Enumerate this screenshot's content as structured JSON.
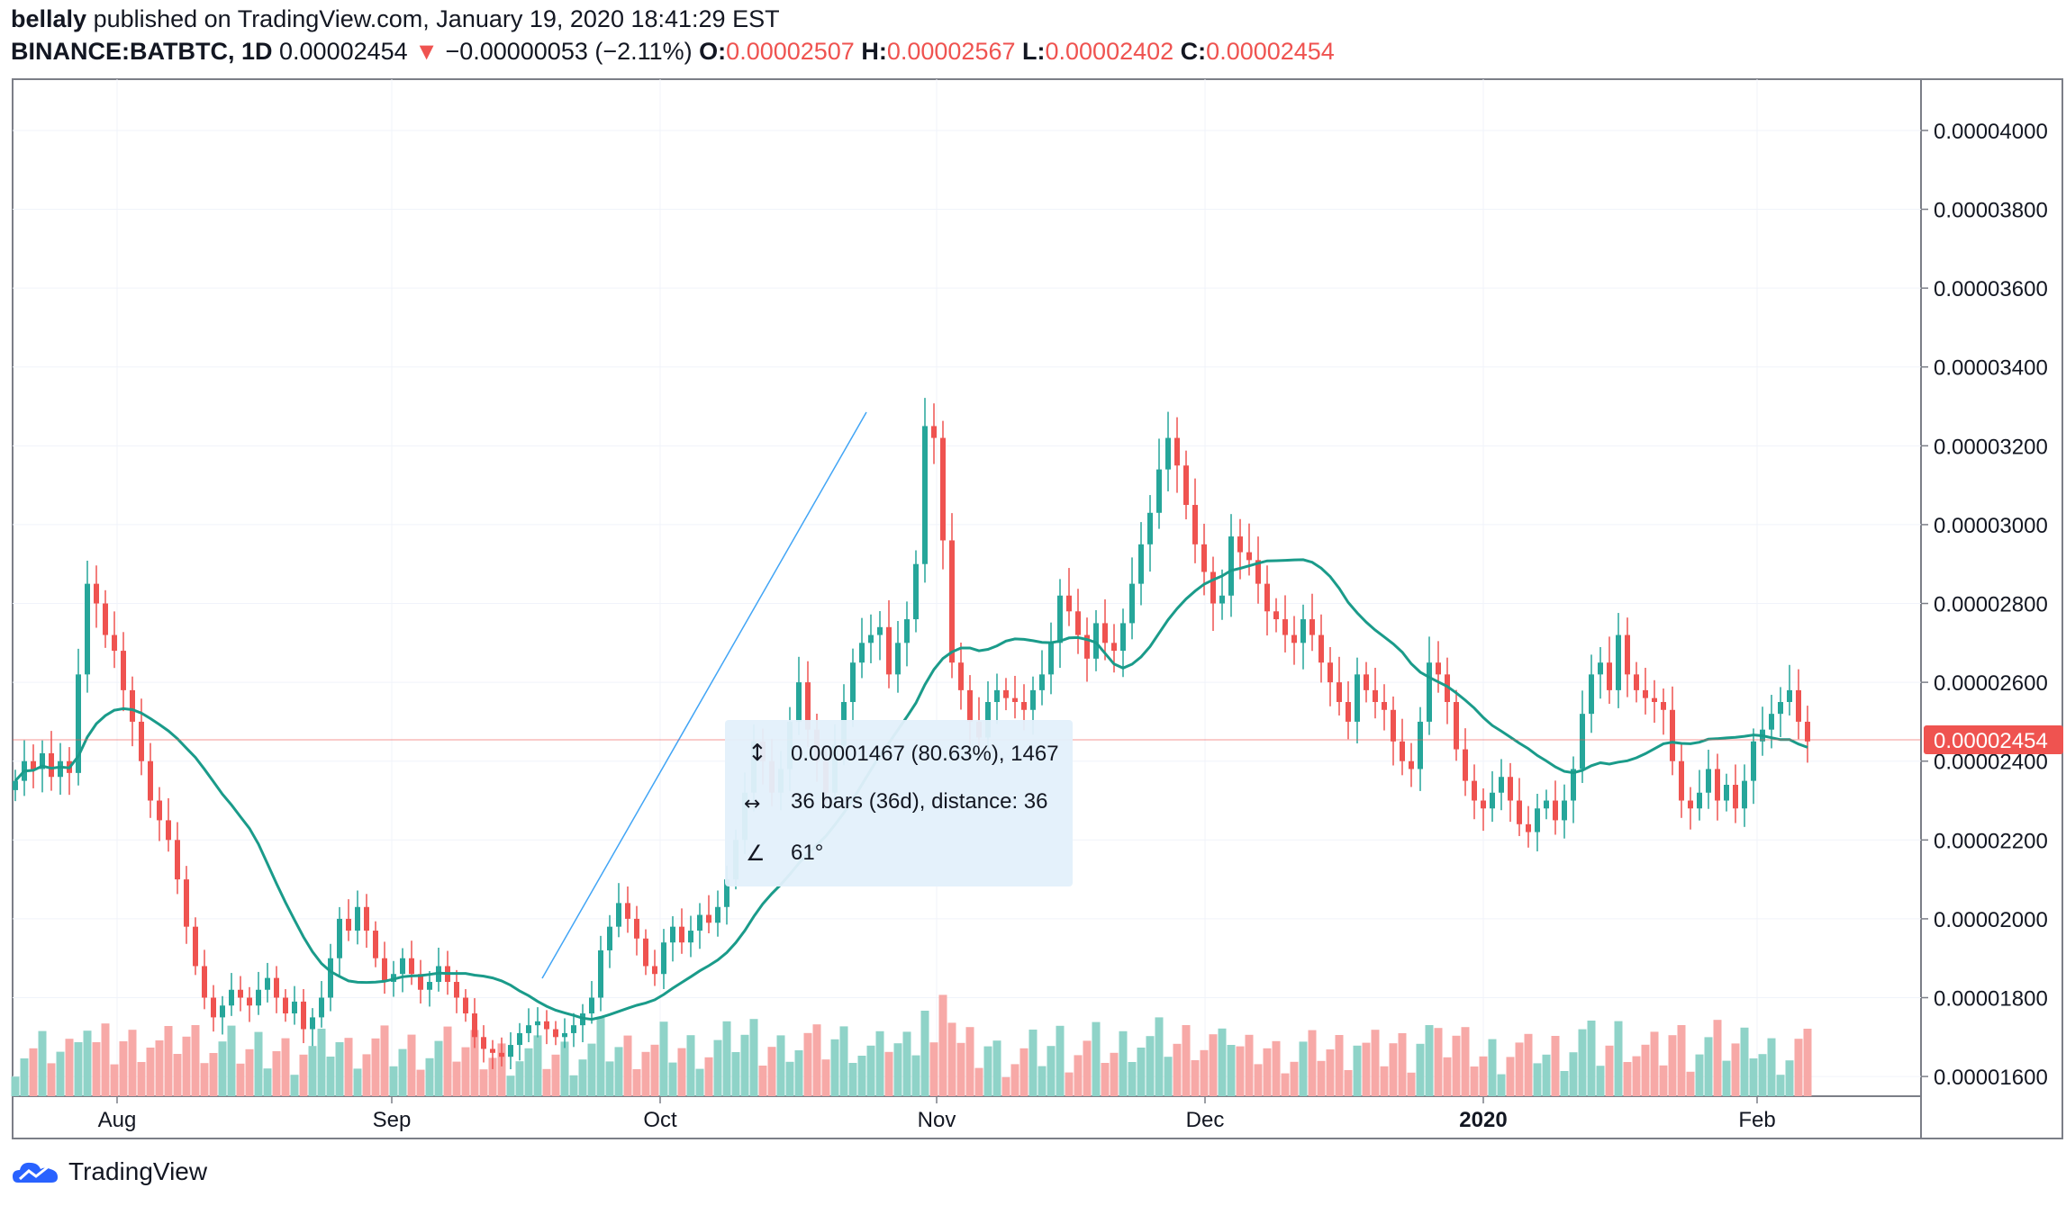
{
  "header": {
    "author": "bellaly",
    "published_text": "published on TradingView.com, January 19, 2020 18:41:29 EST",
    "symbol": "BINANCE:BATBTC, 1D",
    "last": "0.00002454",
    "change": "−0.00000053 (−2.11%)",
    "o_label": "O:",
    "o": "0.00002507",
    "h_label": "H:",
    "h": "0.00002567",
    "l_label": "L:",
    "l": "0.00002402",
    "c_label": "C:",
    "c": "0.00002454"
  },
  "measure": {
    "line1": "0.00001467 (80.63%), 1467",
    "line2": "36 bars (36d), distance: 36",
    "line3": "61°"
  },
  "price_tag": "0.00002454",
  "brand": "TradingView",
  "colors": {
    "up": "#26a69a",
    "down": "#ef5350",
    "ma": "#1a9b8a",
    "up_vol": "#8fd3c8",
    "down_vol": "#f7a9a7",
    "measure_bg": "#e3f0fb",
    "trend": "#42a5f5"
  },
  "chart_data": {
    "type": "candlestick",
    "y_ticks": [
      "0.00004000",
      "0.00003800",
      "0.00003600",
      "0.00003400",
      "0.00003200",
      "0.00003000",
      "0.00002800",
      "0.00002600",
      "0.00002400",
      "0.00002200",
      "0.00002000",
      "0.00001800",
      "0.00001600"
    ],
    "ylim": [
      1.55e-05,
      4.13e-05
    ],
    "x_labels": [
      "Aug",
      "Sep",
      "Oct",
      "Nov",
      "Dec",
      "2020",
      "Feb"
    ],
    "series": [
      {
        "name": "BATBTC",
        "close": [
          2.35e-05,
          2.4e-05,
          2.38e-05,
          2.42e-05,
          2.36e-05,
          2.4e-05,
          2.37e-05,
          2.62e-05,
          2.85e-05,
          2.8e-05,
          2.72e-05,
          2.68e-05,
          2.58e-05,
          2.5e-05,
          2.4e-05,
          2.3e-05,
          2.25e-05,
          2.2e-05,
          2.1e-05,
          1.98e-05,
          1.88e-05,
          1.8e-05,
          1.75e-05,
          1.78e-05,
          1.82e-05,
          1.8e-05,
          1.78e-05,
          1.82e-05,
          1.85e-05,
          1.8e-05,
          1.76e-05,
          1.79e-05,
          1.72e-05,
          1.75e-05,
          1.8e-05,
          1.9e-05,
          2e-05,
          1.97e-05,
          2.03e-05,
          1.97e-05,
          1.9e-05,
          1.84e-05,
          1.86e-05,
          1.9e-05,
          1.86e-05,
          1.82e-05,
          1.84e-05,
          1.88e-05,
          1.84e-05,
          1.8e-05,
          1.76e-05,
          1.7e-05,
          1.67e-05,
          1.66e-05,
          1.65e-05,
          1.68e-05,
          1.71e-05,
          1.73e-05,
          1.74e-05,
          1.72e-05,
          1.7e-05,
          1.71e-05,
          1.73e-05,
          1.76e-05,
          1.8e-05,
          1.92e-05,
          1.98e-05,
          2.04e-05,
          2e-05,
          1.95e-05,
          1.88e-05,
          1.86e-05,
          1.94e-05,
          1.98e-05,
          1.94e-05,
          1.97e-05,
          2.01e-05,
          1.99e-05,
          2.03e-05,
          2.1e-05,
          2.2e-05,
          2.32e-05,
          2.45e-05,
          2.4e-05,
          2.32e-05,
          2.38e-05,
          2.5e-05,
          2.6e-05,
          2.48e-05,
          2.4e-05,
          2.32e-05,
          2.44e-05,
          2.55e-05,
          2.65e-05,
          2.7e-05,
          2.72e-05,
          2.74e-05,
          2.62e-05,
          2.7e-05,
          2.76e-05,
          2.9e-05,
          3.25e-05,
          3.22e-05,
          2.96e-05,
          2.65e-05,
          2.58e-05,
          2.5e-05,
          2.46e-05,
          2.55e-05,
          2.58e-05,
          2.56e-05,
          2.55e-05,
          2.53e-05,
          2.58e-05,
          2.62e-05,
          2.7e-05,
          2.82e-05,
          2.78e-05,
          2.72e-05,
          2.66e-05,
          2.75e-05,
          2.7e-05,
          2.68e-05,
          2.75e-05,
          2.85e-05,
          2.95e-05,
          3.03e-05,
          3.14e-05,
          3.22e-05,
          3.15e-05,
          3.05e-05,
          2.95e-05,
          2.88e-05,
          2.8e-05,
          2.82e-05,
          2.97e-05,
          2.93e-05,
          2.91e-05,
          2.85e-05,
          2.78e-05,
          2.76e-05,
          2.72e-05,
          2.7e-05,
          2.76e-05,
          2.72e-05,
          2.65e-05,
          2.6e-05,
          2.55e-05,
          2.5e-05,
          2.62e-05,
          2.58e-05,
          2.55e-05,
          2.53e-05,
          2.45e-05,
          2.4e-05,
          2.38e-05,
          2.5e-05,
          2.65e-05,
          2.62e-05,
          2.55e-05,
          2.43e-05,
          2.35e-05,
          2.3e-05,
          2.28e-05,
          2.32e-05,
          2.36e-05,
          2.3e-05,
          2.24e-05,
          2.22e-05,
          2.28e-05,
          2.3e-05,
          2.25e-05,
          2.3e-05,
          2.38e-05,
          2.52e-05,
          2.62e-05,
          2.65e-05,
          2.58e-05,
          2.72e-05,
          2.62e-05,
          2.58e-05,
          2.56e-05,
          2.55e-05,
          2.53e-05,
          2.4e-05,
          2.3e-05,
          2.28e-05,
          2.32e-05,
          2.38e-05,
          2.3e-05,
          2.34e-05,
          2.28e-05,
          2.35e-05,
          2.45e-05,
          2.48e-05,
          2.52e-05,
          2.55e-05,
          2.58e-05,
          2.5e-05,
          2.45e-05
        ]
      }
    ]
  }
}
